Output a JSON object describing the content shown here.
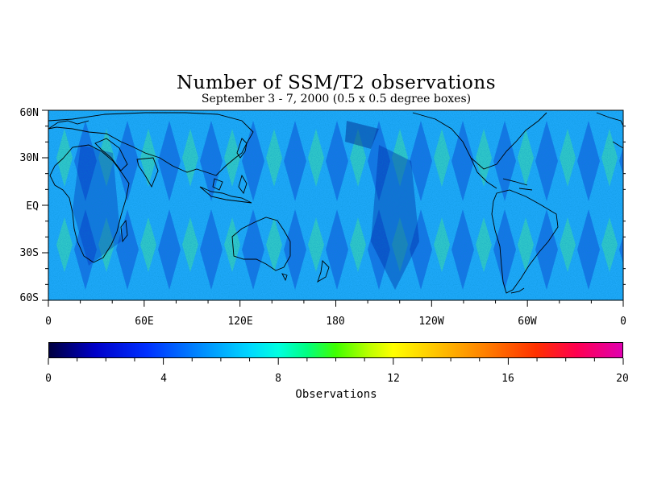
{
  "title": "Number of SSM/T2 observations",
  "subtitle": "September 3 - 7, 2000 (0.5 x 0.5 degree boxes)",
  "latitude_labels": [
    "60N",
    "30N",
    "EQ",
    "30S",
    "60S"
  ],
  "longitude_labels": [
    "0",
    "60E",
    "120E",
    "180",
    "120W",
    "60W",
    "0"
  ],
  "colorbar": {
    "title": "Observations",
    "tick_labels": [
      "0",
      "4",
      "8",
      "12",
      "16",
      "20"
    ],
    "range": [
      0,
      20
    ],
    "colors": [
      "#000040",
      "#0000c8",
      "#0090ff",
      "#00ffe0",
      "#40ff00",
      "#ffff00",
      "#ff8000",
      "#ff0050",
      "#e000b0"
    ]
  },
  "map": {
    "type": "heatmap",
    "projection": "cylindrical",
    "lon_range": [
      0,
      360
    ],
    "lat_range": [
      -60,
      60
    ],
    "background_color": "#20b8ff"
  }
}
